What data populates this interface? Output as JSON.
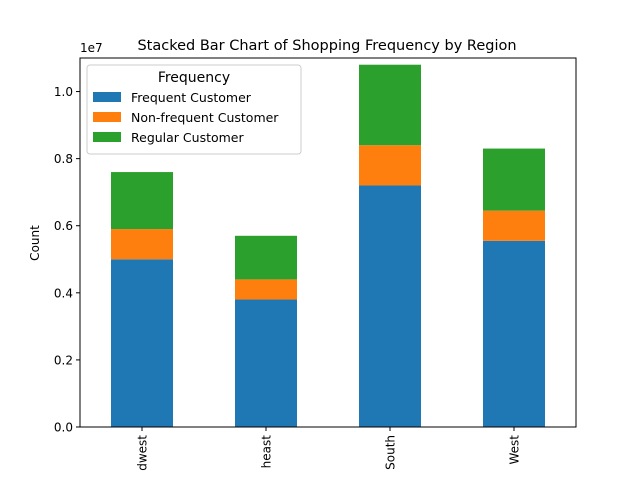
{
  "chart_data": {
    "type": "bar",
    "stacked": true,
    "title": "Stacked Bar Chart of Shopping Frequency by Region",
    "xlabel": "",
    "ylabel": "Count",
    "y_multiplier_label": "1e7",
    "ylim": [
      0,
      1.1
    ],
    "yticks": [
      "0.0",
      "0.2",
      "0.4",
      "0.6",
      "0.8",
      "1.0"
    ],
    "categories": [
      "Midwest",
      "Northeast",
      "South",
      "West"
    ],
    "category_labels_visible": [
      "dwest",
      "heast",
      "South",
      "West"
    ],
    "legend": {
      "title": "Frequency",
      "placement": "upper-left"
    },
    "series": [
      {
        "name": "Frequent Customer",
        "color": "#1f77b4",
        "values": [
          0.5,
          0.38,
          0.72,
          0.555
        ]
      },
      {
        "name": "Non-frequent Customer",
        "color": "#ff7f0e",
        "values": [
          0.09,
          0.06,
          0.12,
          0.09
        ]
      },
      {
        "name": "Regular Customer",
        "color": "#2ca02c",
        "values": [
          0.17,
          0.13,
          0.24,
          0.185
        ]
      }
    ]
  }
}
